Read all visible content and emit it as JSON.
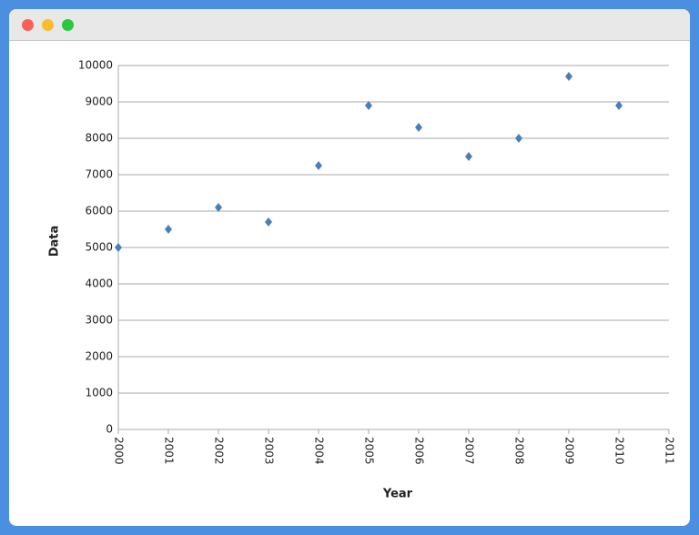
{
  "chart_data": {
    "type": "scatter",
    "x_label": "Year",
    "y_label": "Data",
    "x": [
      2000,
      2001,
      2002,
      2003,
      2004,
      2005,
      2006,
      2007,
      2008,
      2009,
      2010
    ],
    "values": [
      5000,
      5500,
      6100,
      5700,
      7250,
      8900,
      8300,
      7500,
      8000,
      9700,
      8900
    ],
    "color": "#4a7ebb",
    "xlim": [
      2000,
      2011
    ],
    "xticks": [
      2000,
      2001,
      2002,
      2003,
      2004,
      2005,
      2006,
      2007,
      2008,
      2009,
      2010,
      2011
    ],
    "ylim": [
      0,
      10000
    ],
    "yticks": [
      0,
      1000,
      2000,
      3000,
      4000,
      5000,
      6000,
      7000,
      8000,
      9000,
      10000
    ],
    "grid": true
  }
}
